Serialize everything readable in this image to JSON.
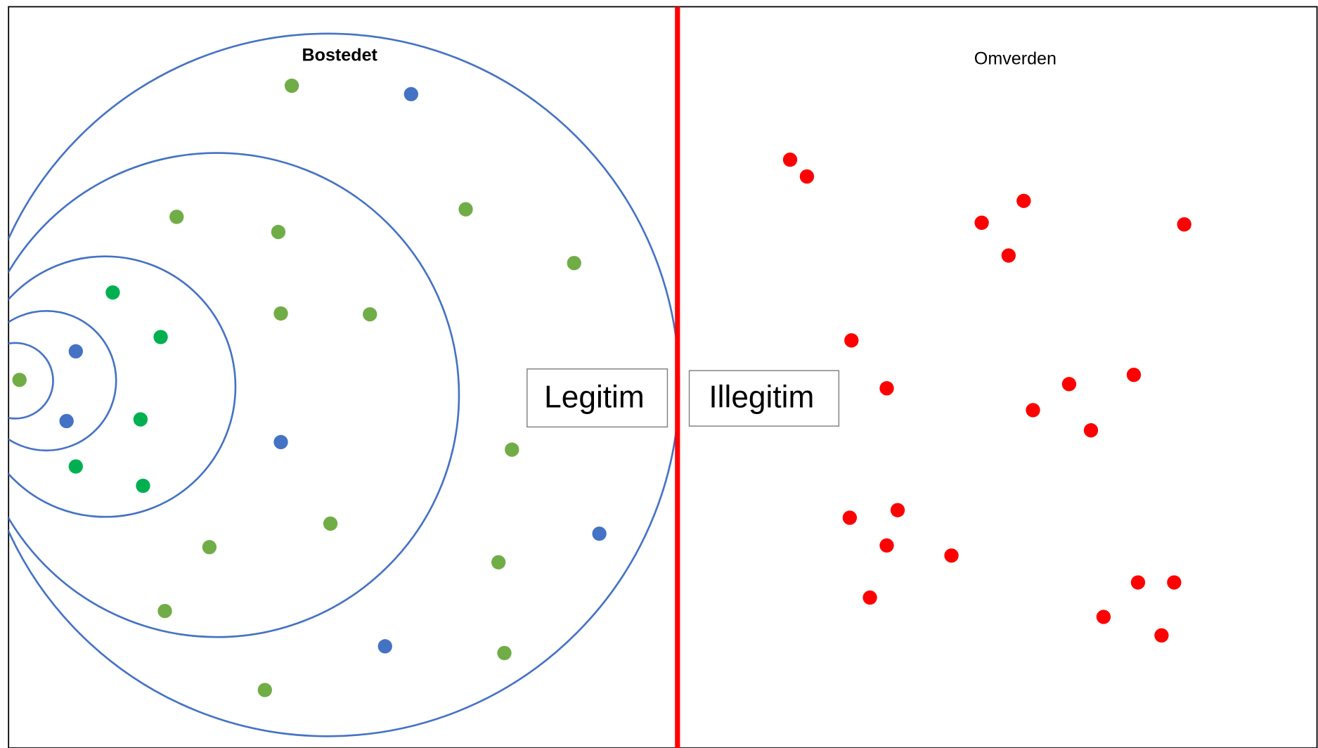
{
  "left_title": "Bostedet",
  "right_title": "Omverden",
  "left_label": "Legitim",
  "right_label": "Illegitim"
}
